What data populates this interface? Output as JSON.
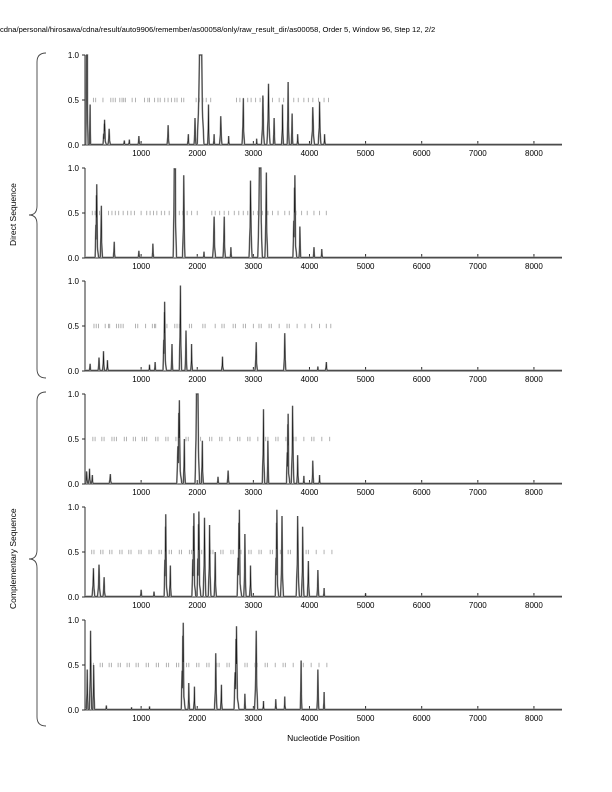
{
  "header": {
    "title": "cdna/personal/hirosawa/cdna/result/auto9906/remember/as00058/only/raw_result_dir/as00058, Order 5, Window 96, Step 12, 2/2"
  },
  "groups": [
    {
      "label": "Direct Sequence"
    },
    {
      "label": "Complementary Sequence"
    }
  ],
  "axis": {
    "x_label": "Nucleotide Position",
    "x_range": [
      0,
      8500
    ],
    "x_ticks": [
      1000,
      2000,
      3000,
      4000,
      5000,
      6000,
      7000,
      8000
    ],
    "y_range": [
      0,
      1
    ],
    "y_ticks": [
      0,
      0.5,
      1
    ],
    "y_tick_labels": [
      "0.0",
      "0.5",
      "1.0"
    ],
    "grid": false,
    "legend": "none"
  },
  "colors": {
    "background": "#ffffff",
    "axis": "#2b2b2b",
    "text": "#000000",
    "signal_outer": "#9a9a9a",
    "signal_core": "#1c1c1c",
    "rug": "#a9a9a9",
    "brace": "#444444"
  },
  "chart_data": [
    {
      "type": "line",
      "name": "direct-panel-1",
      "group": "Direct Sequence",
      "peaks": [
        [
          35,
          1.0,
          20
        ],
        [
          90,
          0.45,
          12
        ],
        [
          350,
          0.28,
          30
        ],
        [
          430,
          0.18,
          20
        ],
        [
          700,
          0.05,
          14
        ],
        [
          790,
          0.06,
          14
        ],
        [
          960,
          0.1,
          16
        ],
        [
          1480,
          0.22,
          18
        ],
        [
          1840,
          0.12,
          14
        ],
        [
          1960,
          0.3,
          18
        ],
        [
          2060,
          1.0,
          60
        ],
        [
          2200,
          0.45,
          14
        ],
        [
          2300,
          0.12,
          12
        ],
        [
          2420,
          0.32,
          22
        ],
        [
          2560,
          0.1,
          12
        ],
        [
          2820,
          0.52,
          22
        ],
        [
          3060,
          0.07,
          10
        ],
        [
          3170,
          0.55,
          25
        ],
        [
          3270,
          0.68,
          28
        ],
        [
          3370,
          0.3,
          16
        ],
        [
          3520,
          0.45,
          16
        ],
        [
          3620,
          0.7,
          18
        ],
        [
          3690,
          0.35,
          14
        ],
        [
          3790,
          0.12,
          12
        ],
        [
          4060,
          0.42,
          28
        ],
        [
          4180,
          0.48,
          25
        ],
        [
          4270,
          0.12,
          12
        ]
      ],
      "rug_x": [
        150,
        190,
        320,
        460,
        500,
        540,
        620,
        660,
        690,
        720,
        840,
        900,
        1060,
        1120,
        1150,
        1240,
        1300,
        1340,
        1420,
        1480,
        1540,
        1600,
        1640,
        1720,
        1760,
        1980,
        2040,
        2100,
        2160,
        2240,
        2700,
        2760,
        2820,
        2900,
        2960,
        3040,
        3120,
        3180,
        3260,
        3340,
        3460,
        3540,
        3720,
        3800,
        3900,
        3980,
        4060,
        4160,
        4260,
        4340
      ]
    },
    {
      "type": "line",
      "name": "direct-panel-2",
      "group": "Direct Sequence",
      "peaks": [
        [
          210,
          0.82,
          30
        ],
        [
          290,
          0.58,
          20
        ],
        [
          520,
          0.18,
          16
        ],
        [
          960,
          0.08,
          14
        ],
        [
          1210,
          0.16,
          14
        ],
        [
          1600,
          0.99,
          30
        ],
        [
          1760,
          0.92,
          22
        ],
        [
          2120,
          0.07,
          12
        ],
        [
          2300,
          0.46,
          25
        ],
        [
          2480,
          0.46,
          20
        ],
        [
          2600,
          0.12,
          12
        ],
        [
          2950,
          0.86,
          28
        ],
        [
          3120,
          1.0,
          40
        ],
        [
          3230,
          0.95,
          25
        ],
        [
          3740,
          0.92,
          35
        ],
        [
          3830,
          0.35,
          16
        ],
        [
          4080,
          0.12,
          14
        ],
        [
          4220,
          0.1,
          14
        ]
      ],
      "rug_x": [
        130,
        180,
        260,
        420,
        480,
        540,
        600,
        680,
        760,
        820,
        880,
        1000,
        1100,
        1160,
        1220,
        1280,
        1360,
        1420,
        1500,
        1580,
        1680,
        1740,
        1820,
        1900,
        2000,
        2260,
        2320,
        2400,
        2480,
        2560,
        2660,
        2740,
        2820,
        2900,
        3000,
        3080,
        3160,
        3260,
        3340,
        3440,
        3560,
        3640,
        3760,
        3860,
        3960,
        4080,
        4180,
        4300
      ]
    },
    {
      "type": "line",
      "name": "direct-panel-3",
      "group": "Direct Sequence",
      "peaks": [
        [
          90,
          0.08,
          14
        ],
        [
          250,
          0.15,
          18
        ],
        [
          330,
          0.22,
          16
        ],
        [
          400,
          0.12,
          14
        ],
        [
          1150,
          0.07,
          12
        ],
        [
          1250,
          0.1,
          12
        ],
        [
          1420,
          0.77,
          30
        ],
        [
          1550,
          0.3,
          16
        ],
        [
          1700,
          0.95,
          22
        ],
        [
          1800,
          0.45,
          18
        ],
        [
          1900,
          0.3,
          14
        ],
        [
          2450,
          0.16,
          16
        ],
        [
          3050,
          0.32,
          20
        ],
        [
          3560,
          0.42,
          20
        ],
        [
          4150,
          0.05,
          10
        ],
        [
          4300,
          0.1,
          16
        ]
      ],
      "rug_x": [
        160,
        200,
        240,
        360,
        420,
        440,
        560,
        600,
        640,
        680,
        900,
        940,
        1080,
        1200,
        1240,
        1260,
        1420,
        1460,
        1600,
        1640,
        1680,
        1860,
        1900,
        2100,
        2140,
        2320,
        2440,
        2480,
        2640,
        2680,
        2820,
        2860,
        3000,
        3100,
        3140,
        3280,
        3320,
        3460,
        3600,
        3640,
        3780,
        3920,
        4040,
        4180,
        4300,
        4380
      ]
    },
    {
      "type": "line",
      "name": "complementary-panel-1",
      "group": "Complementary Sequence",
      "peaks": [
        [
          30,
          0.14,
          18
        ],
        [
          80,
          0.17,
          18
        ],
        [
          130,
          0.1,
          15
        ],
        [
          450,
          0.11,
          20
        ],
        [
          1680,
          0.93,
          45
        ],
        [
          1770,
          0.5,
          18
        ],
        [
          2000,
          1.0,
          40
        ],
        [
          2090,
          0.48,
          18
        ],
        [
          2370,
          0.08,
          14
        ],
        [
          2550,
          0.15,
          18
        ],
        [
          3180,
          0.83,
          22
        ],
        [
          3260,
          0.48,
          16
        ],
        [
          3620,
          0.78,
          30
        ],
        [
          3700,
          0.87,
          25
        ],
        [
          3790,
          0.32,
          16
        ],
        [
          3900,
          0.09,
          12
        ],
        [
          4060,
          0.26,
          16
        ],
        [
          4180,
          0.1,
          12
        ]
      ],
      "rug_x": [
        140,
        180,
        300,
        340,
        480,
        520,
        560,
        700,
        740,
        860,
        900,
        1020,
        1060,
        1100,
        1260,
        1300,
        1440,
        1480,
        1620,
        1660,
        1800,
        1840,
        1980,
        2020,
        2060,
        2220,
        2260,
        2400,
        2440,
        2580,
        2720,
        2760,
        2900,
        2940,
        3080,
        3220,
        3260,
        3400,
        3440,
        3580,
        3720,
        3760,
        3900,
        4040,
        4080,
        4220,
        4360
      ]
    },
    {
      "type": "line",
      "name": "complementary-panel-2",
      "group": "Complementary Sequence",
      "peaks": [
        [
          150,
          0.32,
          25
        ],
        [
          250,
          0.36,
          25
        ],
        [
          340,
          0.22,
          20
        ],
        [
          1000,
          0.08,
          15
        ],
        [
          1230,
          0.06,
          12
        ],
        [
          1440,
          0.92,
          30
        ],
        [
          1520,
          0.35,
          16
        ],
        [
          1940,
          0.93,
          35
        ],
        [
          2030,
          0.95,
          35
        ],
        [
          2130,
          0.88,
          25
        ],
        [
          2220,
          0.8,
          25
        ],
        [
          2320,
          0.5,
          20
        ],
        [
          2750,
          0.97,
          40
        ],
        [
          2850,
          0.7,
          20
        ],
        [
          2950,
          0.35,
          16
        ],
        [
          3420,
          0.97,
          30
        ],
        [
          3510,
          0.9,
          25
        ],
        [
          3790,
          0.9,
          28
        ],
        [
          3880,
          0.78,
          22
        ],
        [
          3980,
          0.4,
          18
        ],
        [
          4150,
          0.3,
          18
        ],
        [
          4260,
          0.1,
          12
        ],
        [
          5000,
          0.04,
          10
        ]
      ],
      "rug_x": [
        120,
        160,
        280,
        320,
        440,
        480,
        620,
        660,
        780,
        820,
        960,
        1000,
        1140,
        1180,
        1320,
        1360,
        1500,
        1540,
        1680,
        1720,
        1860,
        1900,
        2040,
        2080,
        2240,
        2280,
        2420,
        2460,
        2600,
        2640,
        2780,
        2920,
        2960,
        3100,
        3140,
        3300,
        3340,
        3480,
        3620,
        3660,
        3800,
        3940,
        3980,
        4120,
        4260,
        4400
      ]
    },
    {
      "type": "line",
      "name": "complementary-panel-3",
      "group": "Complementary Sequence",
      "peaks": [
        [
          40,
          0.45,
          16
        ],
        [
          100,
          0.88,
          22
        ],
        [
          155,
          0.5,
          16
        ],
        [
          380,
          0.05,
          12
        ],
        [
          830,
          0.03,
          10
        ],
        [
          1150,
          0.04,
          10
        ],
        [
          1750,
          0.97,
          35
        ],
        [
          1850,
          0.3,
          14
        ],
        [
          1950,
          0.26,
          14
        ],
        [
          2330,
          0.63,
          22
        ],
        [
          2430,
          0.28,
          14
        ],
        [
          2700,
          0.93,
          45
        ],
        [
          2850,
          0.18,
          12
        ],
        [
          3050,
          0.88,
          28
        ],
        [
          3180,
          0.1,
          12
        ],
        [
          3400,
          0.12,
          12
        ],
        [
          3560,
          0.15,
          12
        ],
        [
          3850,
          0.55,
          16
        ],
        [
          4150,
          0.45,
          18
        ],
        [
          4260,
          0.2,
          12
        ]
      ],
      "rug_x": [
        110,
        150,
        270,
        310,
        430,
        470,
        590,
        630,
        750,
        790,
        910,
        950,
        1090,
        1130,
        1270,
        1310,
        1450,
        1490,
        1630,
        1670,
        1810,
        1850,
        1990,
        2030,
        2170,
        2210,
        2350,
        2390,
        2530,
        2570,
        2710,
        2850,
        2890,
        3030,
        3070,
        3210,
        3250,
        3390,
        3530,
        3570,
        3710,
        3850,
        3890,
        4030,
        4170,
        4310
      ]
    }
  ]
}
